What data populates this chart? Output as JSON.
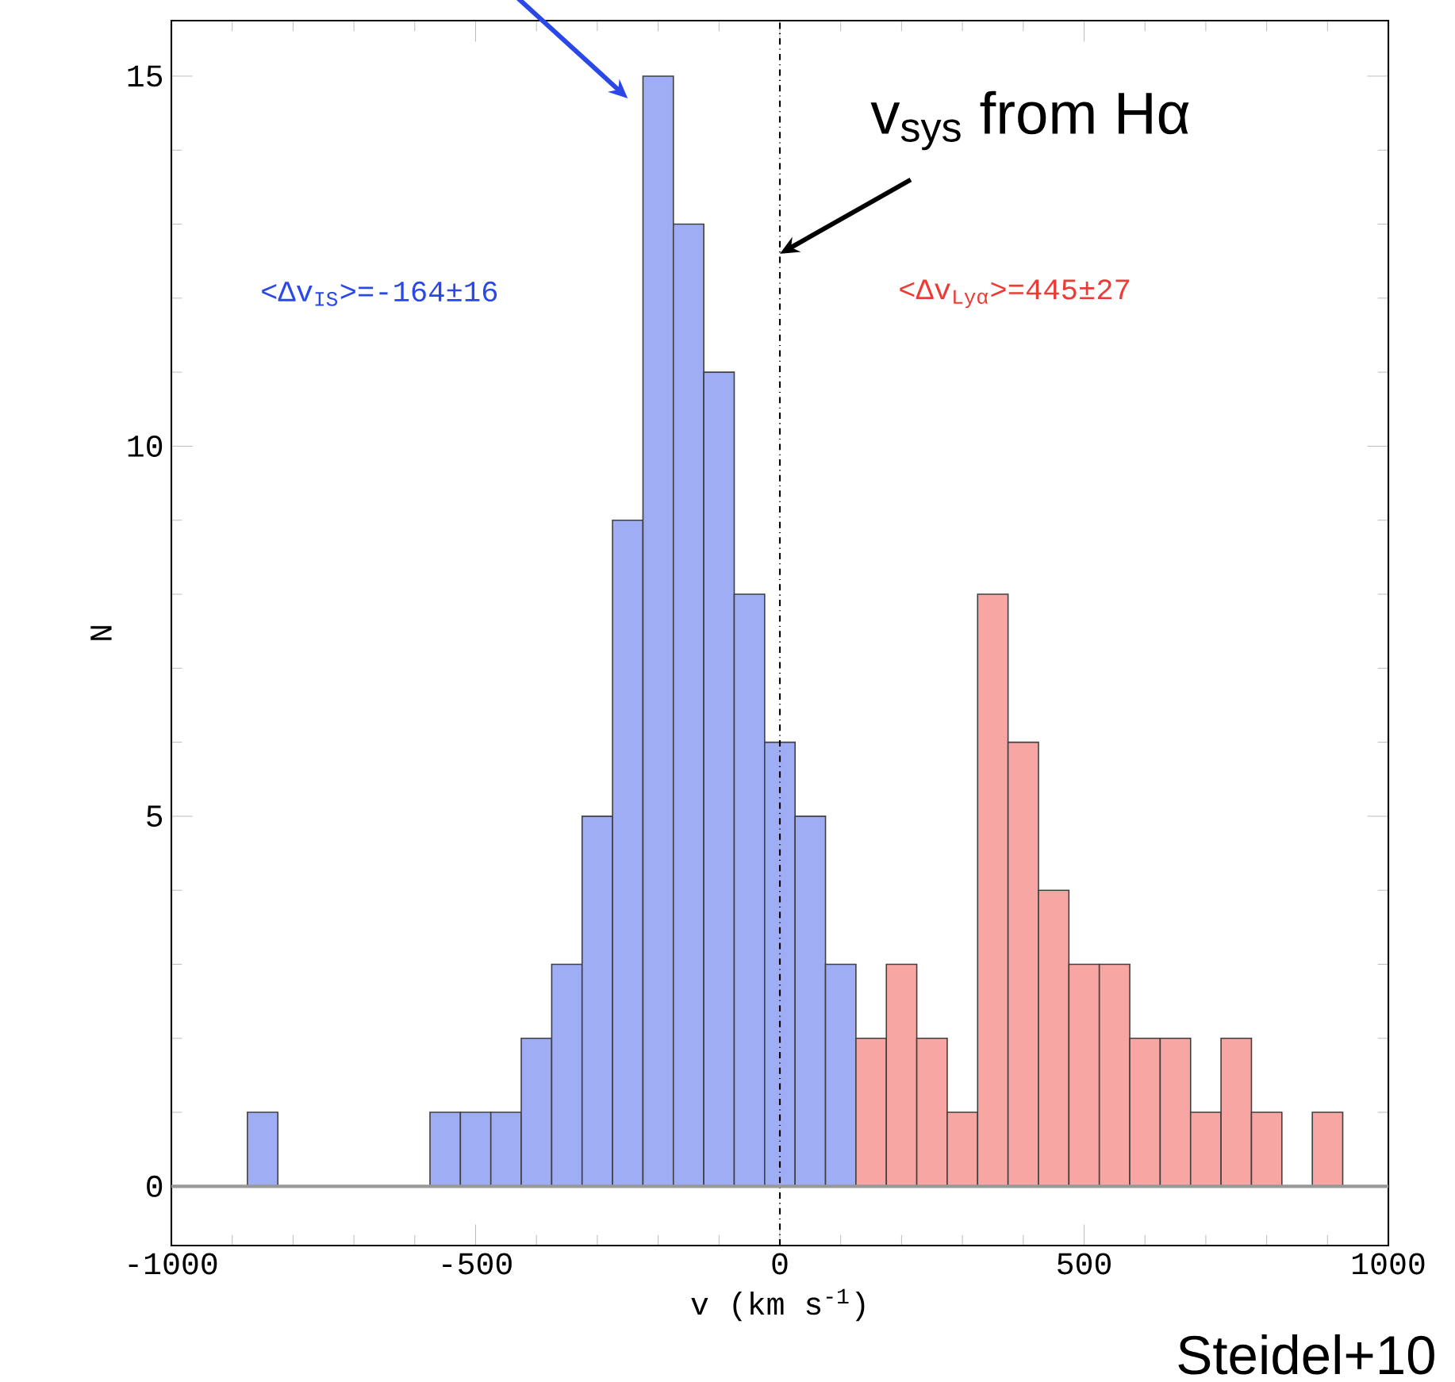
{
  "chart_data": {
    "type": "histogram",
    "xlabel": "v (km s$^{-1}$)",
    "ylabel": "N",
    "bins": [
      -875,
      -825,
      -775,
      -725,
      -675,
      -625,
      -575,
      -525,
      -475,
      -425,
      -375,
      -325,
      -275,
      -225,
      -175,
      -125,
      -75,
      -25,
      25,
      75,
      125,
      175,
      225,
      275,
      325,
      375,
      425,
      475,
      525,
      575,
      625,
      675,
      725,
      775,
      825,
      875,
      925
    ],
    "values": [
      1,
      0,
      0,
      0,
      0,
      0,
      1,
      1,
      1,
      2,
      3,
      5,
      9,
      15,
      13,
      11,
      8,
      6,
      5,
      3,
      2,
      3,
      2,
      1,
      8,
      6,
      4,
      3,
      3,
      2,
      2,
      1,
      2,
      1,
      0,
      1
    ],
    "colors": [
      "#9fadf5",
      "#9fadf5",
      "#9fadf5",
      "#9fadf5",
      "#9fadf5",
      "#9fadf5",
      "#9fadf5",
      "#9fadf5",
      "#9fadf5",
      "#9fadf5",
      "#9fadf5",
      "#9fadf5",
      "#9fadf5",
      "#9fadf5",
      "#9fadf5",
      "#9fadf5",
      "#9fadf5",
      "#9fadf5",
      "#9fadf5",
      "#9fadf5",
      "#f7a6a4",
      "#f7a6a4",
      "#f7a6a4",
      "#f7a6a4",
      "#f7a6a4",
      "#f7a6a4",
      "#f7a6a4",
      "#f7a6a4",
      "#f7a6a4",
      "#f7a6a4",
      "#f7a6a4",
      "#f7a6a4",
      "#f7a6a4",
      "#f7a6a4",
      "#f7a6a4",
      "#f7a6a4"
    ],
    "xlim": [
      -1000,
      1000
    ],
    "ylim": [
      -0.8,
      15.75
    ],
    "xticks": [
      -1000,
      -500,
      0,
      500,
      1000
    ],
    "yticks": [
      0,
      5,
      10,
      15
    ],
    "ref_lines": [
      {
        "axis": "x",
        "value": 0,
        "color": "#000000",
        "line_style": "dashdot"
      },
      {
        "axis": "y",
        "value": 0,
        "color": "#999999",
        "line_style": "solid"
      }
    ],
    "annotations": [
      {
        "text": "v$_{sys}$ from Hα",
        "x": 0,
        "y": 12.6
      },
      "<Δv$_{IS}$>=-164±16",
      "<Δv$_{Lyα}$>=445±27",
      "Steidel+10"
    ],
    "grid": false
  }
}
